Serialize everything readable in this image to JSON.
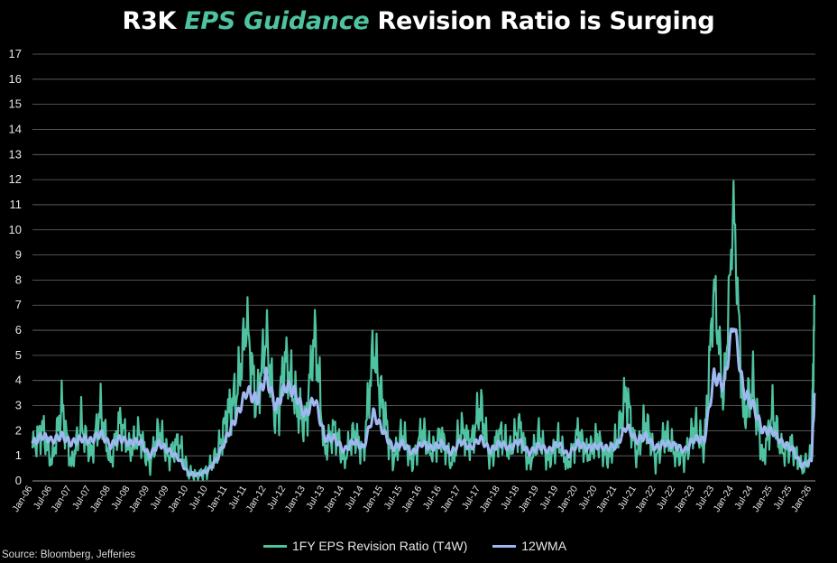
{
  "title": {
    "prefix": "R3K ",
    "accent": "EPS Guidance",
    "suffix": " Revision Ratio is Surging"
  },
  "source": "Source: Bloomberg, Jefferies",
  "colors": {
    "background": "#000000",
    "series_raw": "#4fc3a1",
    "series_avg": "#9fb8f0",
    "grid": "#6a6a6a",
    "text": "#ffffff"
  },
  "chart_data": {
    "type": "line",
    "title": "R3K EPS Guidance Revision Ratio is Surging",
    "xlabel": "",
    "ylabel": "",
    "ylim": [
      0,
      17
    ],
    "yticks": [
      0,
      1,
      2,
      3,
      4,
      5,
      6,
      7,
      8,
      9,
      10,
      11,
      12,
      13,
      14,
      15,
      16,
      17
    ],
    "grid": true,
    "legend_position": "bottom",
    "x_tick_labels": [
      "Jan-06",
      "Jul-06",
      "Jan-07",
      "Jul-07",
      "Jan-08",
      "Jul-08",
      "Jan-09",
      "Jul-09",
      "Jan-10",
      "Jul-10",
      "Jan-11",
      "Jul-11",
      "Jan-12",
      "Jul-12",
      "Jan-13",
      "Jul-13",
      "Jan-14",
      "Jul-14",
      "Jan-15",
      "Jul-15",
      "Jan-16",
      "Jul-16",
      "Jan-17",
      "Jul-17",
      "Jan-18",
      "Jul-18",
      "Jan-19",
      "Jul-19",
      "Jan-20",
      "Jul-20",
      "Jan-21",
      "Jul-21",
      "Jan-22",
      "Jul-22",
      "Jan-23",
      "Jul-23",
      "Jan-24",
      "Jul-24",
      "Jan-25",
      "Jul-25",
      "Jan-26"
    ],
    "x_tick_values": [
      2006.0,
      2006.5,
      2007.0,
      2007.5,
      2008.0,
      2008.5,
      2009.0,
      2009.5,
      2010.0,
      2010.5,
      2011.0,
      2011.5,
      2012.0,
      2012.5,
      2013.0,
      2013.5,
      2014.0,
      2014.5,
      2015.0,
      2015.5,
      2016.0,
      2016.5,
      2017.0,
      2017.5,
      2018.0,
      2018.5,
      2019.0,
      2019.5,
      2020.0,
      2020.5,
      2021.0,
      2021.5,
      2022.0,
      2022.5,
      2023.0,
      2023.5,
      2024.0,
      2024.5,
      2025.0,
      2025.5,
      2026.0
    ],
    "x": [
      2006.0,
      2006.25,
      2006.5,
      2006.75,
      2007.0,
      2007.25,
      2007.5,
      2007.75,
      2008.0,
      2008.25,
      2008.5,
      2008.75,
      2009.0,
      2009.25,
      2009.5,
      2009.75,
      2010.0,
      2010.25,
      2010.5,
      2010.75,
      2011.0,
      2011.25,
      2011.5,
      2011.75,
      2012.0,
      2012.25,
      2012.5,
      2012.75,
      2013.0,
      2013.25,
      2013.5,
      2013.75,
      2014.0,
      2014.25,
      2014.5,
      2014.75,
      2015.0,
      2015.25,
      2015.5,
      2015.75,
      2016.0,
      2016.25,
      2016.5,
      2016.75,
      2017.0,
      2017.25,
      2017.5,
      2017.75,
      2018.0,
      2018.25,
      2018.5,
      2018.75,
      2019.0,
      2019.25,
      2019.5,
      2019.75,
      2020.0,
      2020.25,
      2020.5,
      2020.75,
      2021.0,
      2021.25,
      2021.5,
      2021.75,
      2022.0,
      2022.25,
      2022.5,
      2022.75,
      2023.0,
      2023.25,
      2023.5,
      2023.75,
      2024.0,
      2024.25,
      2024.5,
      2024.75,
      2025.0,
      2025.25,
      2025.5,
      2025.75,
      2026.0,
      2026.08
    ],
    "series": [
      {
        "name": "1FY EPS Revision Ratio (T4W)",
        "values": [
          1.3,
          2.1,
          0.7,
          3.0,
          0.6,
          2.3,
          1.0,
          2.8,
          0.7,
          2.4,
          1.2,
          1.9,
          0.6,
          2.0,
          0.9,
          1.6,
          0.3,
          0.2,
          0.4,
          1.1,
          2.6,
          3.5,
          6.4,
          3.0,
          5.8,
          2.3,
          4.9,
          3.2,
          2.2,
          5.9,
          1.2,
          2.1,
          0.8,
          1.9,
          1.1,
          5.3,
          2.9,
          0.8,
          1.9,
          0.7,
          2.0,
          1.1,
          1.8,
          0.7,
          2.1,
          1.4,
          3.0,
          0.8,
          1.9,
          1.2,
          2.2,
          0.6,
          1.8,
          0.8,
          1.6,
          0.6,
          1.9,
          1.0,
          1.7,
          0.9,
          1.6,
          3.5,
          1.0,
          2.4,
          0.8,
          1.9,
          1.1,
          0.9,
          2.2,
          1.3,
          7.8,
          3.1,
          11.0,
          2.5,
          3.8,
          0.8,
          2.7,
          1.1,
          1.4,
          0.5,
          1.0,
          7.0
        ]
      },
      {
        "name": "12WMA",
        "values": [
          1.5,
          1.8,
          1.6,
          1.8,
          1.5,
          1.7,
          1.6,
          1.9,
          1.4,
          1.7,
          1.5,
          1.6,
          1.0,
          1.5,
          1.2,
          0.9,
          0.3,
          0.25,
          0.4,
          0.9,
          1.8,
          2.6,
          3.6,
          3.2,
          4.2,
          2.9,
          3.8,
          3.5,
          2.6,
          3.3,
          1.7,
          1.7,
          1.2,
          1.6,
          1.3,
          2.7,
          2.0,
          1.3,
          1.5,
          1.1,
          1.5,
          1.3,
          1.5,
          1.1,
          1.6,
          1.3,
          1.7,
          1.2,
          1.5,
          1.3,
          1.6,
          1.1,
          1.4,
          1.2,
          1.5,
          1.0,
          1.5,
          1.3,
          1.4,
          1.3,
          1.4,
          2.2,
          1.6,
          1.8,
          1.3,
          1.5,
          1.4,
          1.2,
          1.7,
          1.6,
          4.2,
          3.8,
          6.4,
          3.6,
          3.0,
          2.0,
          2.0,
          1.5,
          1.3,
          0.6,
          0.8,
          3.5
        ]
      }
    ]
  }
}
